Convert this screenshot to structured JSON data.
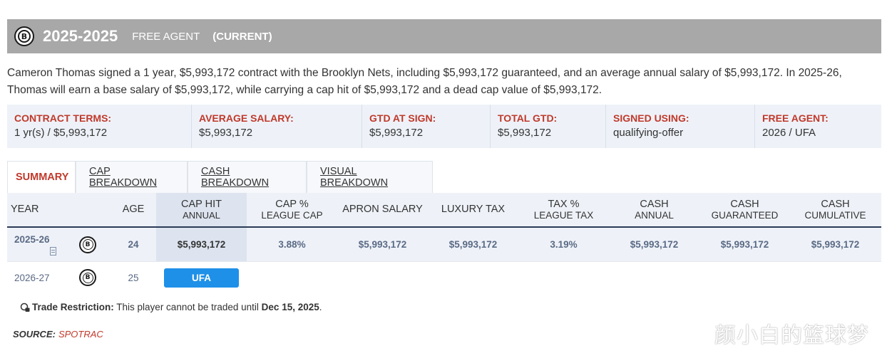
{
  "banner": {
    "year": "2025-2025",
    "status": "FREE AGENT",
    "current": "(CURRENT)",
    "logo_letter": "B"
  },
  "summary_text": "Cameron Thomas signed a 1 year, $5,993,172 contract with the Brooklyn Nets, including $5,993,172 guaranteed, and an average annual salary of $5,993,172. In 2025-26, Thomas will earn a base salary of $5,993,172, while carrying a cap hit of $5,993,172 and a dead cap value of $5,993,172.",
  "terms": [
    {
      "label": "CONTRACT TERMS:",
      "value": "1 yr(s) / $5,993,172"
    },
    {
      "label": "AVERAGE SALARY:",
      "value": "$5,993,172"
    },
    {
      "label": "GTD AT SIGN:",
      "value": "$5,993,172"
    },
    {
      "label": "TOTAL GTD:",
      "value": "$5,993,172"
    },
    {
      "label": "SIGNED USING:",
      "value": "qualifying-offer"
    },
    {
      "label": "FREE AGENT:",
      "value": "2026 / UFA"
    }
  ],
  "tabs": [
    "SUMMARY",
    "CAP BREAKDOWN",
    "CASH BREAKDOWN",
    "VISUAL BREAKDOWN"
  ],
  "columns": {
    "year": "YEAR",
    "age": "AGE",
    "cap_hit_1": "CAP HIT",
    "cap_hit_2": "ANNUAL",
    "cap_pct_1": "CAP %",
    "cap_pct_2": "LEAGUE CAP",
    "apron": "APRON SALARY",
    "luxury": "LUXURY TAX",
    "tax_pct_1": "TAX %",
    "tax_pct_2": "LEAGUE TAX",
    "cash_annual_1": "CASH",
    "cash_annual_2": "ANNUAL",
    "cash_gtd_1": "CASH",
    "cash_gtd_2": "GUARANTEED",
    "cash_cum_1": "CASH",
    "cash_cum_2": "CUMULATIVE"
  },
  "rows": [
    {
      "year": "2025-26",
      "age": "24",
      "cap_hit": "$5,993,172",
      "cap_pct": "3.88%",
      "apron": "$5,993,172",
      "luxury": "$5,993,172",
      "tax_pct": "3.19%",
      "cash_annual": "$5,993,172",
      "cash_gtd": "$5,993,172",
      "cash_cum": "$5,993,172"
    },
    {
      "year": "2026-27",
      "age": "25",
      "status": "UFA"
    }
  ],
  "trade": {
    "label": "Trade Restriction:",
    "text": " This player cannot be traded until ",
    "date": "Dec 15, 2025",
    "end": "."
  },
  "source": {
    "label": "SOURCE:",
    "name": "SPOTRAC"
  },
  "watermark": "颜小白的篮球梦"
}
